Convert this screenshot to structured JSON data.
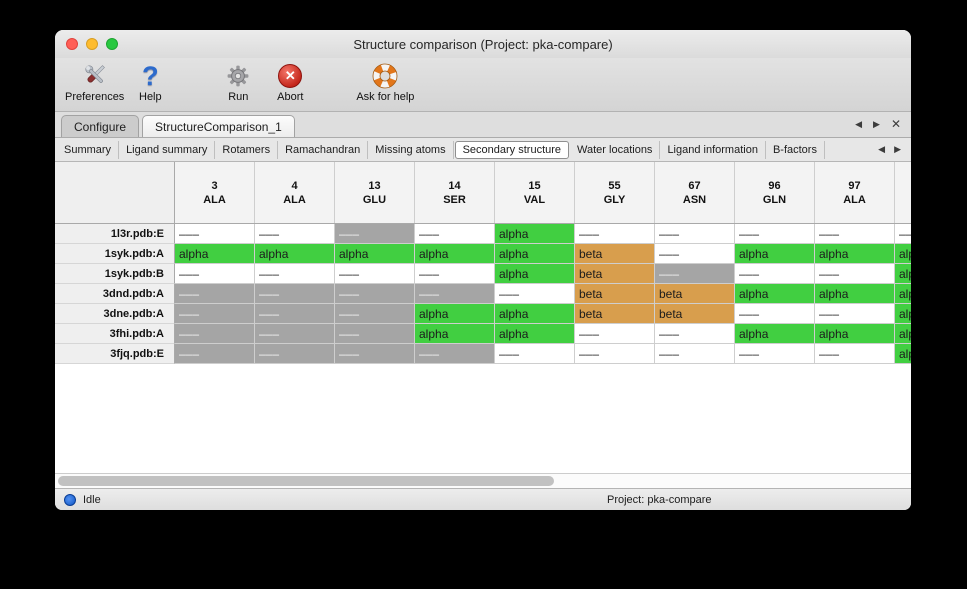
{
  "window": {
    "title": "Structure comparison (Project: pka-compare)"
  },
  "toolbar": {
    "items": [
      {
        "label": "Preferences",
        "icon": "tools-icon"
      },
      {
        "label": "Help",
        "icon": "question-mark-icon"
      },
      {
        "label": "Run",
        "icon": "gear-icon"
      },
      {
        "label": "Abort",
        "icon": "abort-x-icon"
      },
      {
        "label": "Ask for help",
        "icon": "life-ring-icon"
      }
    ]
  },
  "tabs": {
    "items": [
      {
        "label": "Configure",
        "selected": false
      },
      {
        "label": "StructureComparison_1",
        "selected": true
      }
    ],
    "controls": {
      "prev": "◀",
      "next": "▶",
      "close": "✕"
    }
  },
  "subtabs": {
    "items": [
      "Summary",
      "Ligand summary",
      "Rotamers",
      "Ramachandran",
      "Missing atoms",
      "Secondary structure",
      "Water locations",
      "Ligand information",
      "B-factors"
    ],
    "selected": "Secondary structure",
    "controls": {
      "prev": "◀",
      "next": "▶"
    }
  },
  "table": {
    "columns": [
      {
        "number": "3",
        "residue": "ALA"
      },
      {
        "number": "4",
        "residue": "ALA"
      },
      {
        "number": "13",
        "residue": "GLU"
      },
      {
        "number": "14",
        "residue": "SER"
      },
      {
        "number": "15",
        "residue": "VAL"
      },
      {
        "number": "55",
        "residue": "GLY"
      },
      {
        "number": "67",
        "residue": "ASN"
      },
      {
        "number": "96",
        "residue": "GLN"
      },
      {
        "number": "97",
        "residue": "ALA"
      },
      {
        "number": "",
        "residue": ""
      }
    ],
    "cell_labels": {
      "blank": "–––",
      "gray": "–––",
      "alpha": "alpha",
      "beta": "beta"
    },
    "colors": {
      "alpha": "#41cf41",
      "beta": "#d89e4d",
      "gray": "#a5a5a5"
    },
    "rows": [
      {
        "label": "1l3r.pdb:E",
        "cells": [
          "blank",
          "blank",
          "gray",
          "blank",
          "alpha",
          "blank",
          "blank",
          "blank",
          "blank",
          "blank"
        ]
      },
      {
        "label": "1syk.pdb:A",
        "cells": [
          "alpha",
          "alpha",
          "alpha",
          "alpha",
          "alpha",
          "beta",
          "blank",
          "alpha",
          "alpha",
          "alpha"
        ]
      },
      {
        "label": "1syk.pdb:B",
        "cells": [
          "blank",
          "blank",
          "blank",
          "blank",
          "alpha",
          "beta",
          "gray",
          "blank",
          "blank",
          "alpha"
        ]
      },
      {
        "label": "3dnd.pdb:A",
        "cells": [
          "gray",
          "gray",
          "gray",
          "gray",
          "blank",
          "beta",
          "beta",
          "alpha",
          "alpha",
          "alpha"
        ]
      },
      {
        "label": "3dne.pdb:A",
        "cells": [
          "gray",
          "gray",
          "gray",
          "alpha",
          "alpha",
          "beta",
          "beta",
          "blank",
          "blank",
          "alpha"
        ]
      },
      {
        "label": "3fhi.pdb:A",
        "cells": [
          "gray",
          "gray",
          "gray",
          "alpha",
          "alpha",
          "blank",
          "blank",
          "alpha",
          "alpha",
          "alpha"
        ]
      },
      {
        "label": "3fjq.pdb:E",
        "cells": [
          "gray",
          "gray",
          "gray",
          "gray",
          "blank",
          "blank",
          "blank",
          "blank",
          "blank",
          "alpha"
        ]
      }
    ]
  },
  "statusbar": {
    "status": "Idle",
    "project": "Project: pka-compare"
  }
}
